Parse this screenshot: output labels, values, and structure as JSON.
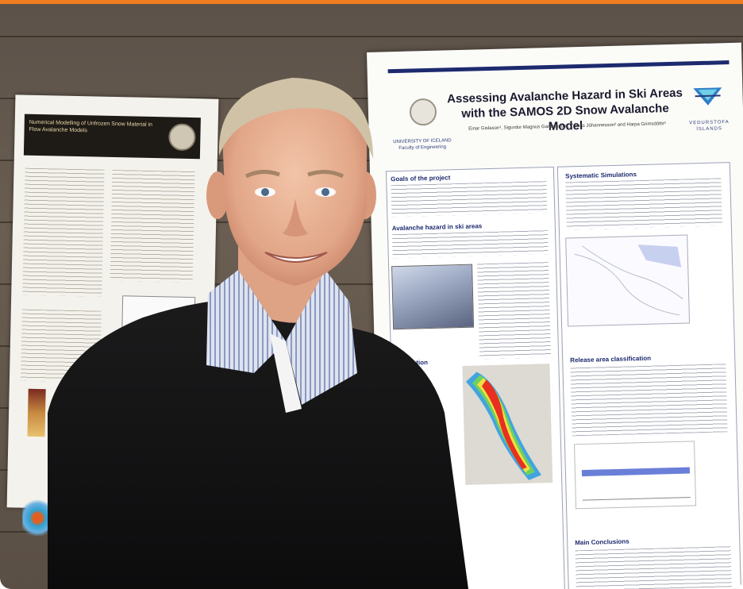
{
  "scene": {
    "description_hidden": true,
    "accent_color": "#f07d1e"
  },
  "left_poster": {
    "title": "Numerical Modelling of Unfrozen Snow Material in Flow Avalanche Models",
    "seal_icon": "university-seal-icon"
  },
  "right_poster": {
    "title_line1": "Assessing Avalanche Hazard in Ski Areas",
    "title_line2": "with the SAMOS 2D Snow Avalanche Model",
    "authors": "Einar Gislason¹, Sigurdur Magnus Gardarsson¹, Tómas Jóhannesson² and Harpa Grimsdóttir²",
    "university": "UNIVERSITY OF ICELAND",
    "faculty": "Faculty of Engineering",
    "logo_text": "VEDURSTOFA ÍSLANDS",
    "sections": {
      "goals": "Goals of the project",
      "hazard": "Avalanche hazard in ski areas",
      "systematic": "Systematic Simulations",
      "release": "Release area classification",
      "conclusions": "Main Conclusions",
      "classification": "ification"
    }
  }
}
